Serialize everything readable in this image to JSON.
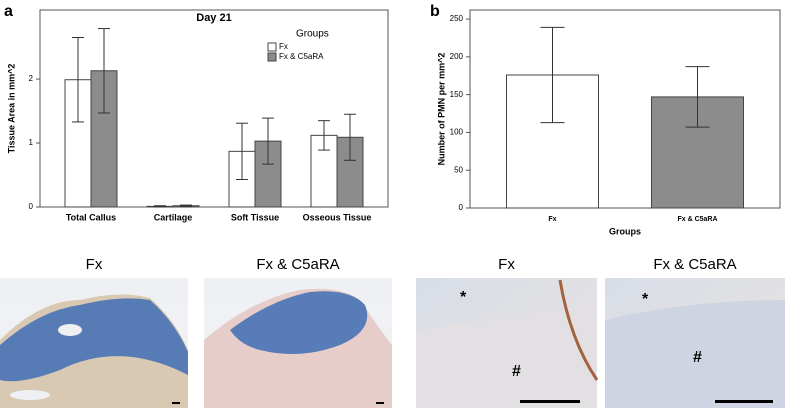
{
  "chart_data": [
    {
      "type": "bar",
      "panel": "a",
      "title": "Day 21",
      "y_label": "Tissue Area in mm^2",
      "legend_title": "Groups",
      "categories": [
        "Total Callus",
        "Cartilage",
        "Soft Tissue",
        "Osseous Tissue"
      ],
      "series": [
        {
          "name": "Fx",
          "color": "#ffffff",
          "values": [
            1.99,
            0.01,
            0.87,
            1.12
          ],
          "errors": [
            0.66,
            0.01,
            0.44,
            0.23
          ]
        },
        {
          "name": "Fx & C5aRA",
          "color": "#8c8c8c",
          "values": [
            2.13,
            0.02,
            1.03,
            1.09
          ],
          "errors": [
            0.66,
            0.01,
            0.36,
            0.36
          ]
        }
      ],
      "ylim": [
        0,
        3.08
      ],
      "yticks": [
        0,
        1,
        2
      ]
    },
    {
      "type": "bar",
      "panel": "b",
      "y_label": "Number of PMN per mm^2",
      "x_label": "Groups",
      "categories": [
        "Fx",
        "Fx & C5aRA"
      ],
      "values": [
        176,
        147
      ],
      "errors": [
        63,
        40
      ],
      "colors": [
        "#ffffff",
        "#8c8c8c"
      ],
      "ylim": [
        0,
        262
      ],
      "yticks": [
        0,
        50,
        100,
        150,
        200,
        250
      ]
    }
  ],
  "images": [
    {
      "label": "Fx",
      "marks": []
    },
    {
      "label": "Fx & C5aRA",
      "marks": []
    },
    {
      "label": "Fx",
      "marks": [
        "*",
        "#"
      ]
    },
    {
      "label": "Fx & C5aRA",
      "marks": [
        "*",
        "#"
      ]
    }
  ]
}
